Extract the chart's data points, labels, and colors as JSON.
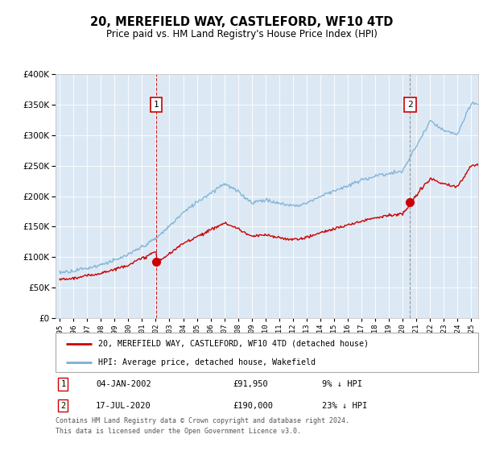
{
  "title": "20, MEREFIELD WAY, CASTLEFORD, WF10 4TD",
  "subtitle": "Price paid vs. HM Land Registry's House Price Index (HPI)",
  "bg_color": "#dce9f5",
  "hpi_color": "#7bafd4",
  "price_color": "#cc0000",
  "marker1_year": 2002.04,
  "marker1_price": 91950,
  "marker2_year": 2020.54,
  "marker2_price": 190000,
  "legend1": "20, MEREFIELD WAY, CASTLEFORD, WF10 4TD (detached house)",
  "legend2": "HPI: Average price, detached house, Wakefield",
  "footnote3": "Contains HM Land Registry data © Crown copyright and database right 2024.",
  "footnote4": "This data is licensed under the Open Government Licence v3.0.",
  "ylim_max": 400000,
  "xlim_start": 1994.7,
  "xlim_end": 2025.5,
  "hpi_years": [
    1995,
    1996,
    1997,
    1998,
    1999,
    2000,
    2001,
    2002,
    2003,
    2004,
    2005,
    2006,
    2007,
    2008,
    2009,
    2010,
    2011,
    2012,
    2013,
    2014,
    2015,
    2016,
    2017,
    2018,
    2019,
    2020,
    2021,
    2022,
    2023,
    2024,
    2025
  ],
  "hpi_vals": [
    75000,
    78000,
    83000,
    89000,
    96000,
    105000,
    117000,
    130000,
    150000,
    175000,
    192000,
    207000,
    223000,
    210000,
    192000,
    196000,
    190000,
    186000,
    191000,
    202000,
    212000,
    220000,
    230000,
    238000,
    243000,
    246000,
    290000,
    330000,
    315000,
    310000,
    360000
  ],
  "prev_price": 63000,
  "prev_hpi_base_year": 1995,
  "prev_hpi_base": 75000
}
